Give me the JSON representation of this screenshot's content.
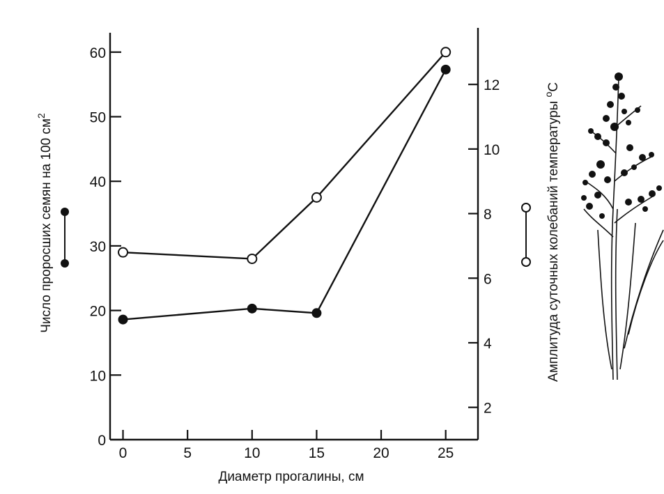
{
  "chart_data": {
    "type": "line",
    "xlabel": "Диаметр прогалины, см",
    "ylabel_left": "Число проросших семян на 100 см",
    "ylabel_left_superscript": "2",
    "ylabel_right": "Амплитуда суточных колебаний температуры ",
    "ylabel_right_unit_superscript": "o",
    "ylabel_right_unit": "C",
    "x_ticks": [
      0,
      5,
      10,
      15,
      20,
      25
    ],
    "x_tick_labels": [
      "0",
      "5",
      "10",
      "15",
      "20",
      "25"
    ],
    "xlim": [
      -1,
      27.5
    ],
    "y_left_ticks": [
      0,
      10,
      20,
      30,
      40,
      50,
      60
    ],
    "y_left_tick_labels": [
      "0",
      "10",
      "20",
      "30",
      "40",
      "50",
      "60"
    ],
    "ylim_left": [
      0,
      63
    ],
    "y_right_ticks": [
      2,
      4,
      6,
      8,
      10,
      12
    ],
    "y_right_tick_labels": [
      "2",
      "4",
      "6",
      "8",
      "10",
      "12"
    ],
    "ylim_right": [
      1,
      13.6
    ],
    "grid": false,
    "legend": "symbols beside each y-axis",
    "series": [
      {
        "marker": "filled-circle",
        "axis": "left",
        "x": [
          0,
          10,
          15,
          25
        ],
        "values": [
          18.6,
          20.3,
          19.6,
          57.3
        ]
      },
      {
        "marker": "open-circle",
        "axis": "right",
        "x": [
          0,
          10,
          15,
          25
        ],
        "values": [
          6.8,
          6.6,
          8.5,
          13.0
        ]
      }
    ],
    "colors": {
      "ink": "#111111",
      "background": "#ffffff"
    }
  }
}
